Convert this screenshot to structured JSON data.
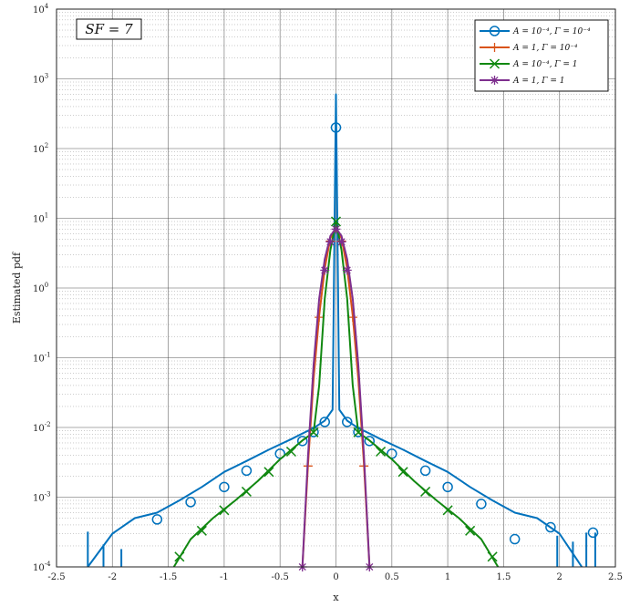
{
  "chart_data": {
    "type": "line",
    "title": "",
    "xlabel": "x",
    "ylabel": "Estimated pdf",
    "xlim": [
      -2.5,
      2.5
    ],
    "ylim": [
      0.0001,
      10000
    ],
    "yscale": "log",
    "grid": true,
    "minor_grid": true,
    "x_ticks": [
      -2.5,
      -2,
      -1.5,
      -1,
      -0.5,
      0,
      0.5,
      1,
      1.5,
      2,
      2.5
    ],
    "x_tick_labels": [
      "-2.5",
      "-2",
      "-1.5",
      "-1",
      "-0.5",
      "0",
      "0.5",
      "1",
      "1.5",
      "2",
      "2.5"
    ],
    "y_ticks": [
      0.0001,
      0.001,
      0.01,
      0.1,
      1,
      10,
      100,
      1000,
      10000
    ],
    "y_tick_labels": [
      {
        "base": "10",
        "exp": "-4"
      },
      {
        "base": "10",
        "exp": "-3"
      },
      {
        "base": "10",
        "exp": "-2"
      },
      {
        "base": "10",
        "exp": "-1"
      },
      {
        "base": "10",
        "exp": "0"
      },
      {
        "base": "10",
        "exp": "1"
      },
      {
        "base": "10",
        "exp": "2"
      },
      {
        "base": "10",
        "exp": "3"
      },
      {
        "base": "10",
        "exp": "4"
      }
    ],
    "annotation": "SF = 7",
    "legend_position": "top-right",
    "series": [
      {
        "name": "A = 10⁻⁴, Γ = 10⁻⁴",
        "color": "#0072BD",
        "marker": "circle",
        "x": [
          -2.22,
          -2.0,
          -1.8,
          -1.6,
          -1.4,
          -1.2,
          -1.0,
          -0.8,
          -0.6,
          -0.4,
          -0.3,
          -0.2,
          -0.1,
          -0.03,
          0,
          0.03,
          0.1,
          0.2,
          0.3,
          0.4,
          0.6,
          0.8,
          1.0,
          1.2,
          1.4,
          1.6,
          1.8,
          2.0,
          2.2
        ],
        "y": [
          0.0001,
          0.0003,
          0.0005,
          0.0006,
          0.0009,
          0.0014,
          0.0023,
          0.0033,
          0.0048,
          0.0068,
          0.0082,
          0.0098,
          0.0125,
          0.018,
          600,
          0.018,
          0.0125,
          0.0098,
          0.0082,
          0.0068,
          0.0048,
          0.0033,
          0.0023,
          0.0014,
          0.0009,
          0.0006,
          0.0005,
          0.0003,
          0.0001
        ],
        "marker_points": {
          "x": [
            -1.6,
            -1.3,
            -1.0,
            -0.8,
            -0.5,
            -0.3,
            -0.2,
            -0.1,
            0,
            0.1,
            0.2,
            0.3,
            0.5,
            0.8,
            1.0,
            1.3,
            1.6,
            1.92,
            2.3
          ],
          "y": [
            0.00048,
            0.00085,
            0.0014,
            0.0024,
            0.0042,
            0.0064,
            0.0086,
            0.012,
            200,
            0.012,
            0.0086,
            0.0064,
            0.0042,
            0.0024,
            0.0014,
            0.0008,
            0.00025,
            0.00037,
            0.00031
          ]
        },
        "spikes": {
          "x": [
            -2.22,
            -2.08,
            -1.92,
            1.98,
            2.12,
            2.24,
            2.32
          ],
          "y": [
            0.00032,
            0.00021,
            0.00018,
            0.00028,
            0.00023,
            0.00031,
            0.00031
          ]
        }
      },
      {
        "name": "A = 1, Γ = 10⁻⁴",
        "color": "#D95319",
        "marker": "plus",
        "x": [
          -0.3,
          -0.25,
          -0.2,
          -0.15,
          -0.1,
          -0.05,
          0,
          0.05,
          0.1,
          0.15,
          0.2,
          0.25,
          0.3
        ],
        "y": [
          0.0001,
          0.003,
          0.05,
          0.4,
          1.9,
          5.2,
          7.0,
          5.2,
          1.9,
          0.4,
          0.05,
          0.003,
          0.0001
        ],
        "marker_points": {
          "x": [
            -0.25,
            -0.15,
            -0.05,
            0.05,
            0.15,
            0.25
          ],
          "y": [
            0.0028,
            0.38,
            4.7,
            4.7,
            0.38,
            0.0028
          ]
        }
      },
      {
        "name": "A = 10⁻⁴, Γ = 1",
        "color": "#118811",
        "marker": "x",
        "x": [
          -1.45,
          -1.3,
          -1.1,
          -0.9,
          -0.7,
          -0.5,
          -0.3,
          -0.2,
          -0.15,
          -0.1,
          -0.05,
          0,
          0.05,
          0.1,
          0.15,
          0.2,
          0.3,
          0.5,
          0.7,
          0.9,
          1.1,
          1.3,
          1.45
        ],
        "y": [
          0.0001,
          0.00025,
          0.0005,
          0.0009,
          0.0017,
          0.0035,
          0.0065,
          0.0085,
          0.04,
          0.7,
          3.5,
          9.0,
          3.5,
          0.7,
          0.04,
          0.0085,
          0.0065,
          0.0035,
          0.0017,
          0.0009,
          0.0005,
          0.00025,
          0.0001
        ],
        "marker_points": {
          "x": [
            -1.4,
            -1.2,
            -1.0,
            -0.8,
            -0.6,
            -0.4,
            -0.2,
            0,
            0.2,
            0.4,
            0.6,
            0.8,
            1.0,
            1.2,
            1.4
          ],
          "y": [
            0.00014,
            0.00033,
            0.00065,
            0.0012,
            0.0023,
            0.0045,
            0.0085,
            9.0,
            0.0085,
            0.0045,
            0.0023,
            0.0012,
            0.00065,
            0.00033,
            0.00014
          ]
        }
      },
      {
        "name": "A = 1, Γ = 1",
        "color": "#7E2F8E",
        "marker": "star",
        "x": [
          -0.3,
          -0.25,
          -0.2,
          -0.15,
          -0.1,
          -0.05,
          0,
          0.05,
          0.1,
          0.15,
          0.2,
          0.25,
          0.3
        ],
        "y": [
          0.0001,
          0.004,
          0.08,
          0.7,
          2.6,
          5.6,
          7.2,
          5.6,
          2.6,
          0.7,
          0.08,
          0.004,
          0.0001
        ],
        "marker_points": {
          "x": [
            -0.3,
            -0.1,
            -0.05,
            0,
            0.05,
            0.1,
            0.3
          ],
          "y": [
            0.0001,
            1.8,
            4.6,
            7.0,
            4.6,
            1.8,
            0.0001
          ]
        }
      }
    ]
  }
}
